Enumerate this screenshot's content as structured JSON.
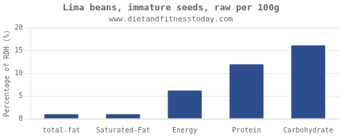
{
  "chart_data": {
    "type": "bar",
    "title": "Lima beans, immature seeds, raw per 100g",
    "subtitle": "www.dietandfitnesstoday.com",
    "categories": [
      "total-fat",
      "Saturated-Fat",
      "Energy",
      "Protein",
      "Carbohydrate"
    ],
    "values": [
      1.0,
      1.0,
      6.2,
      12.0,
      16.2
    ],
    "color": "#2e4d8e",
    "ylabel": "Percentage of RDH (%)",
    "ylim": [
      0,
      20
    ],
    "yticks": [
      0,
      5,
      10,
      15,
      20
    ],
    "grid": true
  }
}
